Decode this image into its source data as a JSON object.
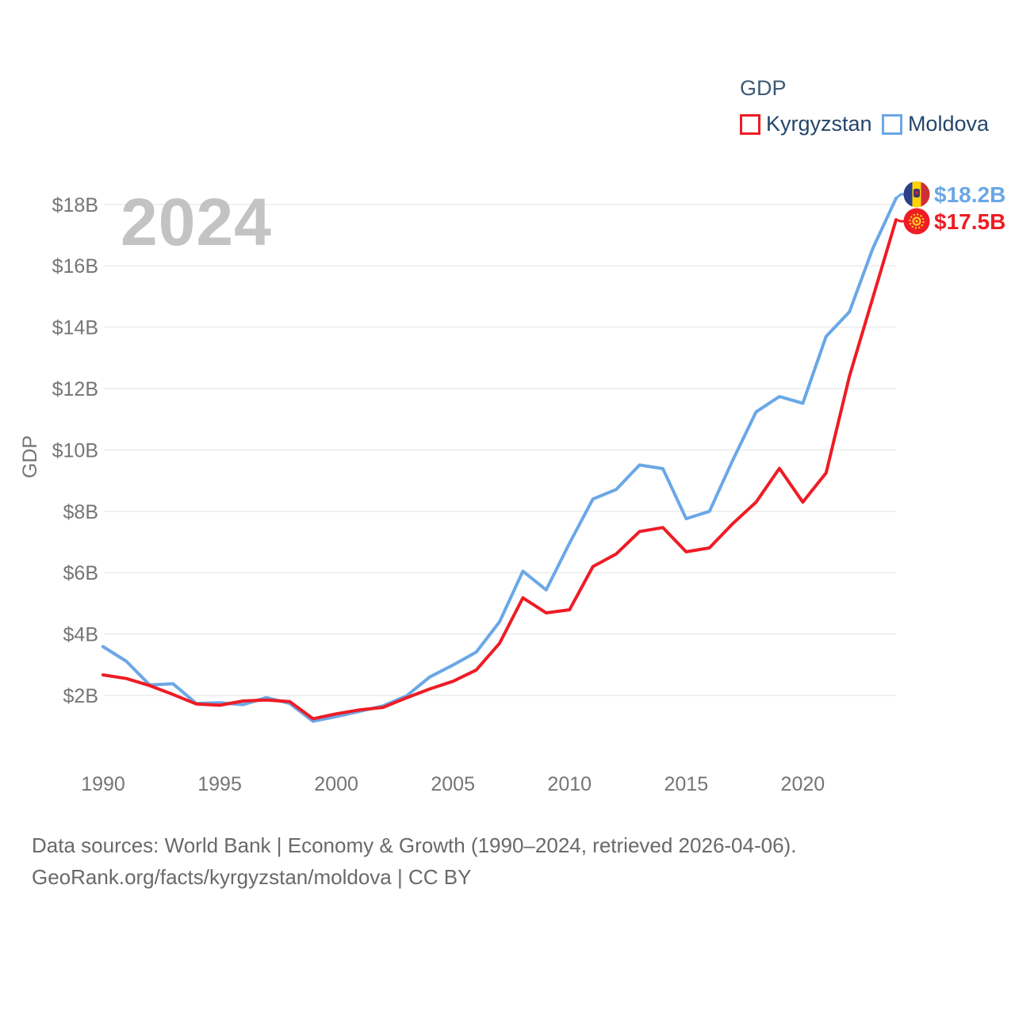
{
  "watermark": "2024",
  "legend": {
    "title": "GDP",
    "items": [
      {
        "label": "Kyrgyzstan",
        "color": "#ee1c25"
      },
      {
        "label": "Moldova",
        "color": "#6aa7e6"
      }
    ]
  },
  "axis": {
    "y_title": "GDP"
  },
  "end_labels": {
    "moldova": {
      "value": "$18.2B",
      "color": "#6aa7e6",
      "icon": "moldova-flag-icon"
    },
    "kyrgyzstan": {
      "value": "$17.5B",
      "color": "#ee1c25",
      "icon": "kyrgyzstan-flag-icon"
    }
  },
  "footer": {
    "line1": "Data sources: World Bank | Economy & Growth (1990–2024, retrieved 2026-04-06).",
    "line2": "GeoRank.org/facts/kyrgyzstan/moldova | CC BY"
  },
  "chart_data": {
    "type": "line",
    "title": "GDP",
    "ylabel": "GDP",
    "xlabel": "",
    "grid": "horizontal",
    "legend_position": "top-right",
    "ylim": [
      0.5,
      18.8
    ],
    "y_gridlines": [
      2,
      4,
      6,
      8,
      10,
      12,
      14,
      16,
      18
    ],
    "y_ticks": [
      "$2B",
      "$4B",
      "$6B",
      "$8B",
      "$10B",
      "$12B",
      "$14B",
      "$16B",
      "$18B"
    ],
    "x_ticks": [
      1990,
      1995,
      2000,
      2005,
      2010,
      2015,
      2020
    ],
    "x": [
      1990,
      1991,
      1992,
      1993,
      1994,
      1995,
      1996,
      1997,
      1998,
      1999,
      2000,
      2001,
      2002,
      2003,
      2004,
      2005,
      2006,
      2007,
      2008,
      2009,
      2010,
      2011,
      2012,
      2013,
      2014,
      2015,
      2016,
      2017,
      2018,
      2019,
      2020,
      2021,
      2022,
      2023,
      2024
    ],
    "series": [
      {
        "name": "Kyrgyzstan",
        "color": "#ee1c25",
        "values": [
          2.67,
          2.55,
          2.32,
          2.03,
          1.72,
          1.68,
          1.82,
          1.85,
          1.8,
          1.24,
          1.4,
          1.53,
          1.61,
          1.92,
          2.21,
          2.46,
          2.83,
          3.7,
          5.18,
          4.69,
          4.79,
          6.2,
          6.61,
          7.34,
          7.47,
          6.68,
          6.81,
          7.6,
          8.3,
          9.4,
          8.3,
          9.25,
          12.4,
          14.95,
          17.5
        ]
      },
      {
        "name": "Moldova",
        "color": "#6aa7e6",
        "values": [
          3.59,
          3.11,
          2.34,
          2.38,
          1.74,
          1.76,
          1.7,
          1.93,
          1.74,
          1.16,
          1.31,
          1.48,
          1.66,
          1.98,
          2.6,
          2.99,
          3.41,
          4.4,
          6.05,
          5.44,
          6.96,
          8.4,
          8.71,
          9.51,
          9.39,
          7.76,
          8.0,
          9.67,
          11.24,
          11.74,
          11.52,
          13.7,
          14.5,
          16.56,
          18.2
        ]
      }
    ]
  }
}
